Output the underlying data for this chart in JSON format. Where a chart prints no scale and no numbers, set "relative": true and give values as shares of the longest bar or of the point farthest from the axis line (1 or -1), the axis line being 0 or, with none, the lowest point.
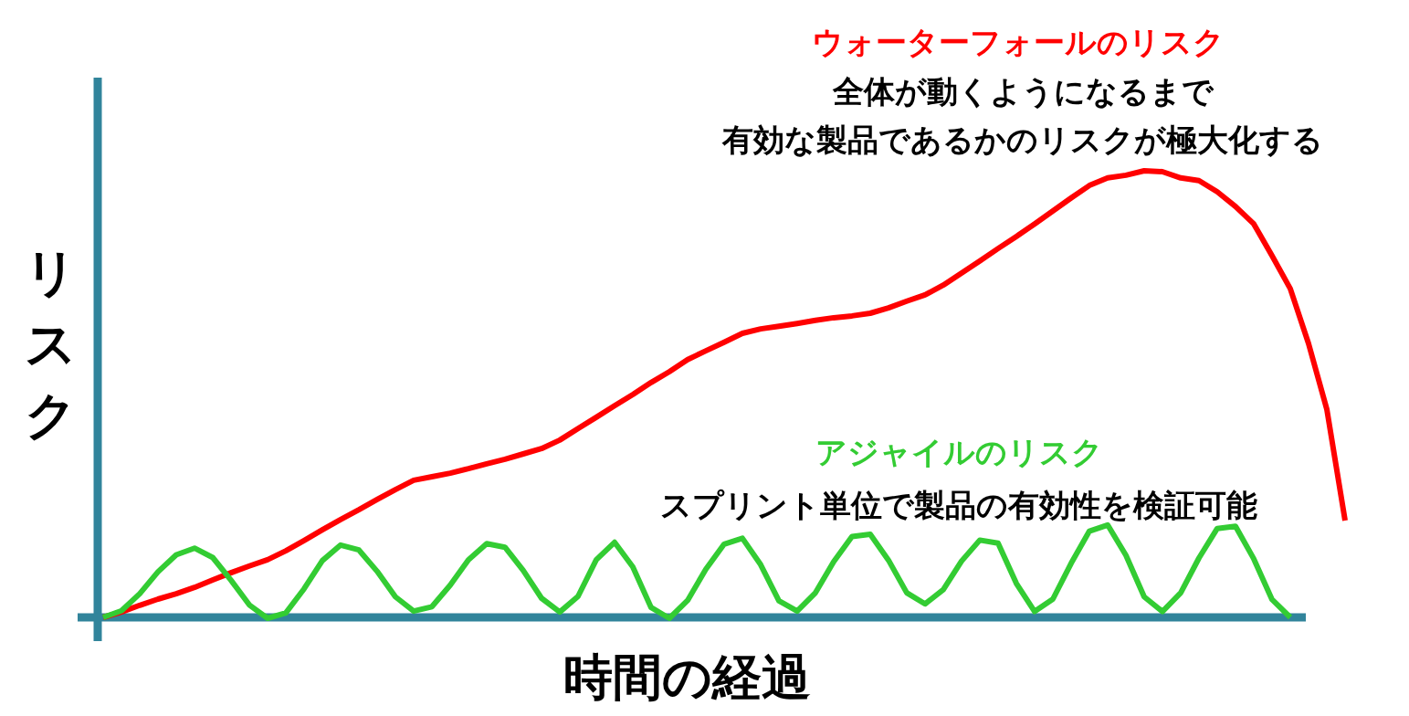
{
  "chart_data": {
    "type": "line",
    "relative": true,
    "xlabel": "時間の経過",
    "ylabel": "リスク",
    "categories": [
      null,
      null,
      null,
      null,
      null,
      null,
      null,
      null,
      null,
      null,
      null,
      null,
      null,
      null,
      null,
      null,
      null,
      null,
      null,
      null,
      null,
      null,
      null,
      null,
      null,
      null,
      null,
      null,
      null,
      null,
      null,
      null,
      null,
      null,
      null,
      null,
      null,
      null,
      null,
      null,
      null,
      null,
      null,
      null,
      null,
      null,
      null,
      null,
      null,
      null,
      null,
      null,
      null,
      null,
      null,
      null,
      null,
      null,
      null,
      null,
      null,
      null,
      null,
      null,
      null,
      null,
      null,
      null,
      null
    ],
    "series": [
      {
        "name": "ウォーターフォールのリスク",
        "color": "#ff0000",
        "values": [
          0,
          0.012,
          0.027,
          0.041,
          0.053,
          0.067,
          0.084,
          0.1,
          0.115,
          0.129,
          0.149,
          0.172,
          0.196,
          0.219,
          0.241,
          0.264,
          0.286,
          0.307,
          0.315,
          0.323,
          0.333,
          0.344,
          0.354,
          0.366,
          0.378,
          0.397,
          0.423,
          0.448,
          0.474,
          0.499,
          0.526,
          0.55,
          0.577,
          0.597,
          0.616,
          0.636,
          0.646,
          0.652,
          0.658,
          0.665,
          0.671,
          0.675,
          0.681,
          0.693,
          0.708,
          0.722,
          0.744,
          0.771,
          0.798,
          0.826,
          0.853,
          0.881,
          0.91,
          0.939,
          0.967,
          0.984,
          0.99,
          1,
          0.998,
          0.984,
          0.978,
          0.953,
          0.92,
          0.881,
          0.81,
          0.736,
          0.613,
          0.466,
          0.217
        ]
      },
      {
        "name": "アジャイルのリスク",
        "color": "#33cc33",
        "values": [
          0,
          0.015,
          0.053,
          0.102,
          0.14,
          0.155,
          0.134,
          0.083,
          0.028,
          -0.002,
          0.01,
          0.064,
          0.127,
          0.162,
          0.151,
          0.103,
          0.046,
          0.014,
          0.024,
          0.072,
          0.129,
          0.165,
          0.157,
          0.105,
          0.043,
          0.012,
          0.047,
          0.129,
          0.168,
          0.113,
          0.022,
          -0.002,
          0.038,
          0.108,
          0.164,
          0.177,
          0.118,
          0.037,
          0.014,
          0.055,
          0.125,
          0.181,
          0.186,
          0.128,
          0.055,
          0.03,
          0.062,
          0.126,
          0.173,
          0.166,
          0.076,
          0.013,
          0.041,
          0.121,
          0.193,
          0.207,
          0.139,
          0.046,
          0.013,
          0.055,
          0.133,
          0.199,
          0.204,
          0.131,
          0.04,
          0,
          null,
          null,
          null
        ]
      }
    ],
    "annotations": [
      "全体が動くようになるまで",
      "有効な製品であるかのリスクが極大化する",
      "スプリント単位で製品の有効性を検証可能"
    ]
  }
}
